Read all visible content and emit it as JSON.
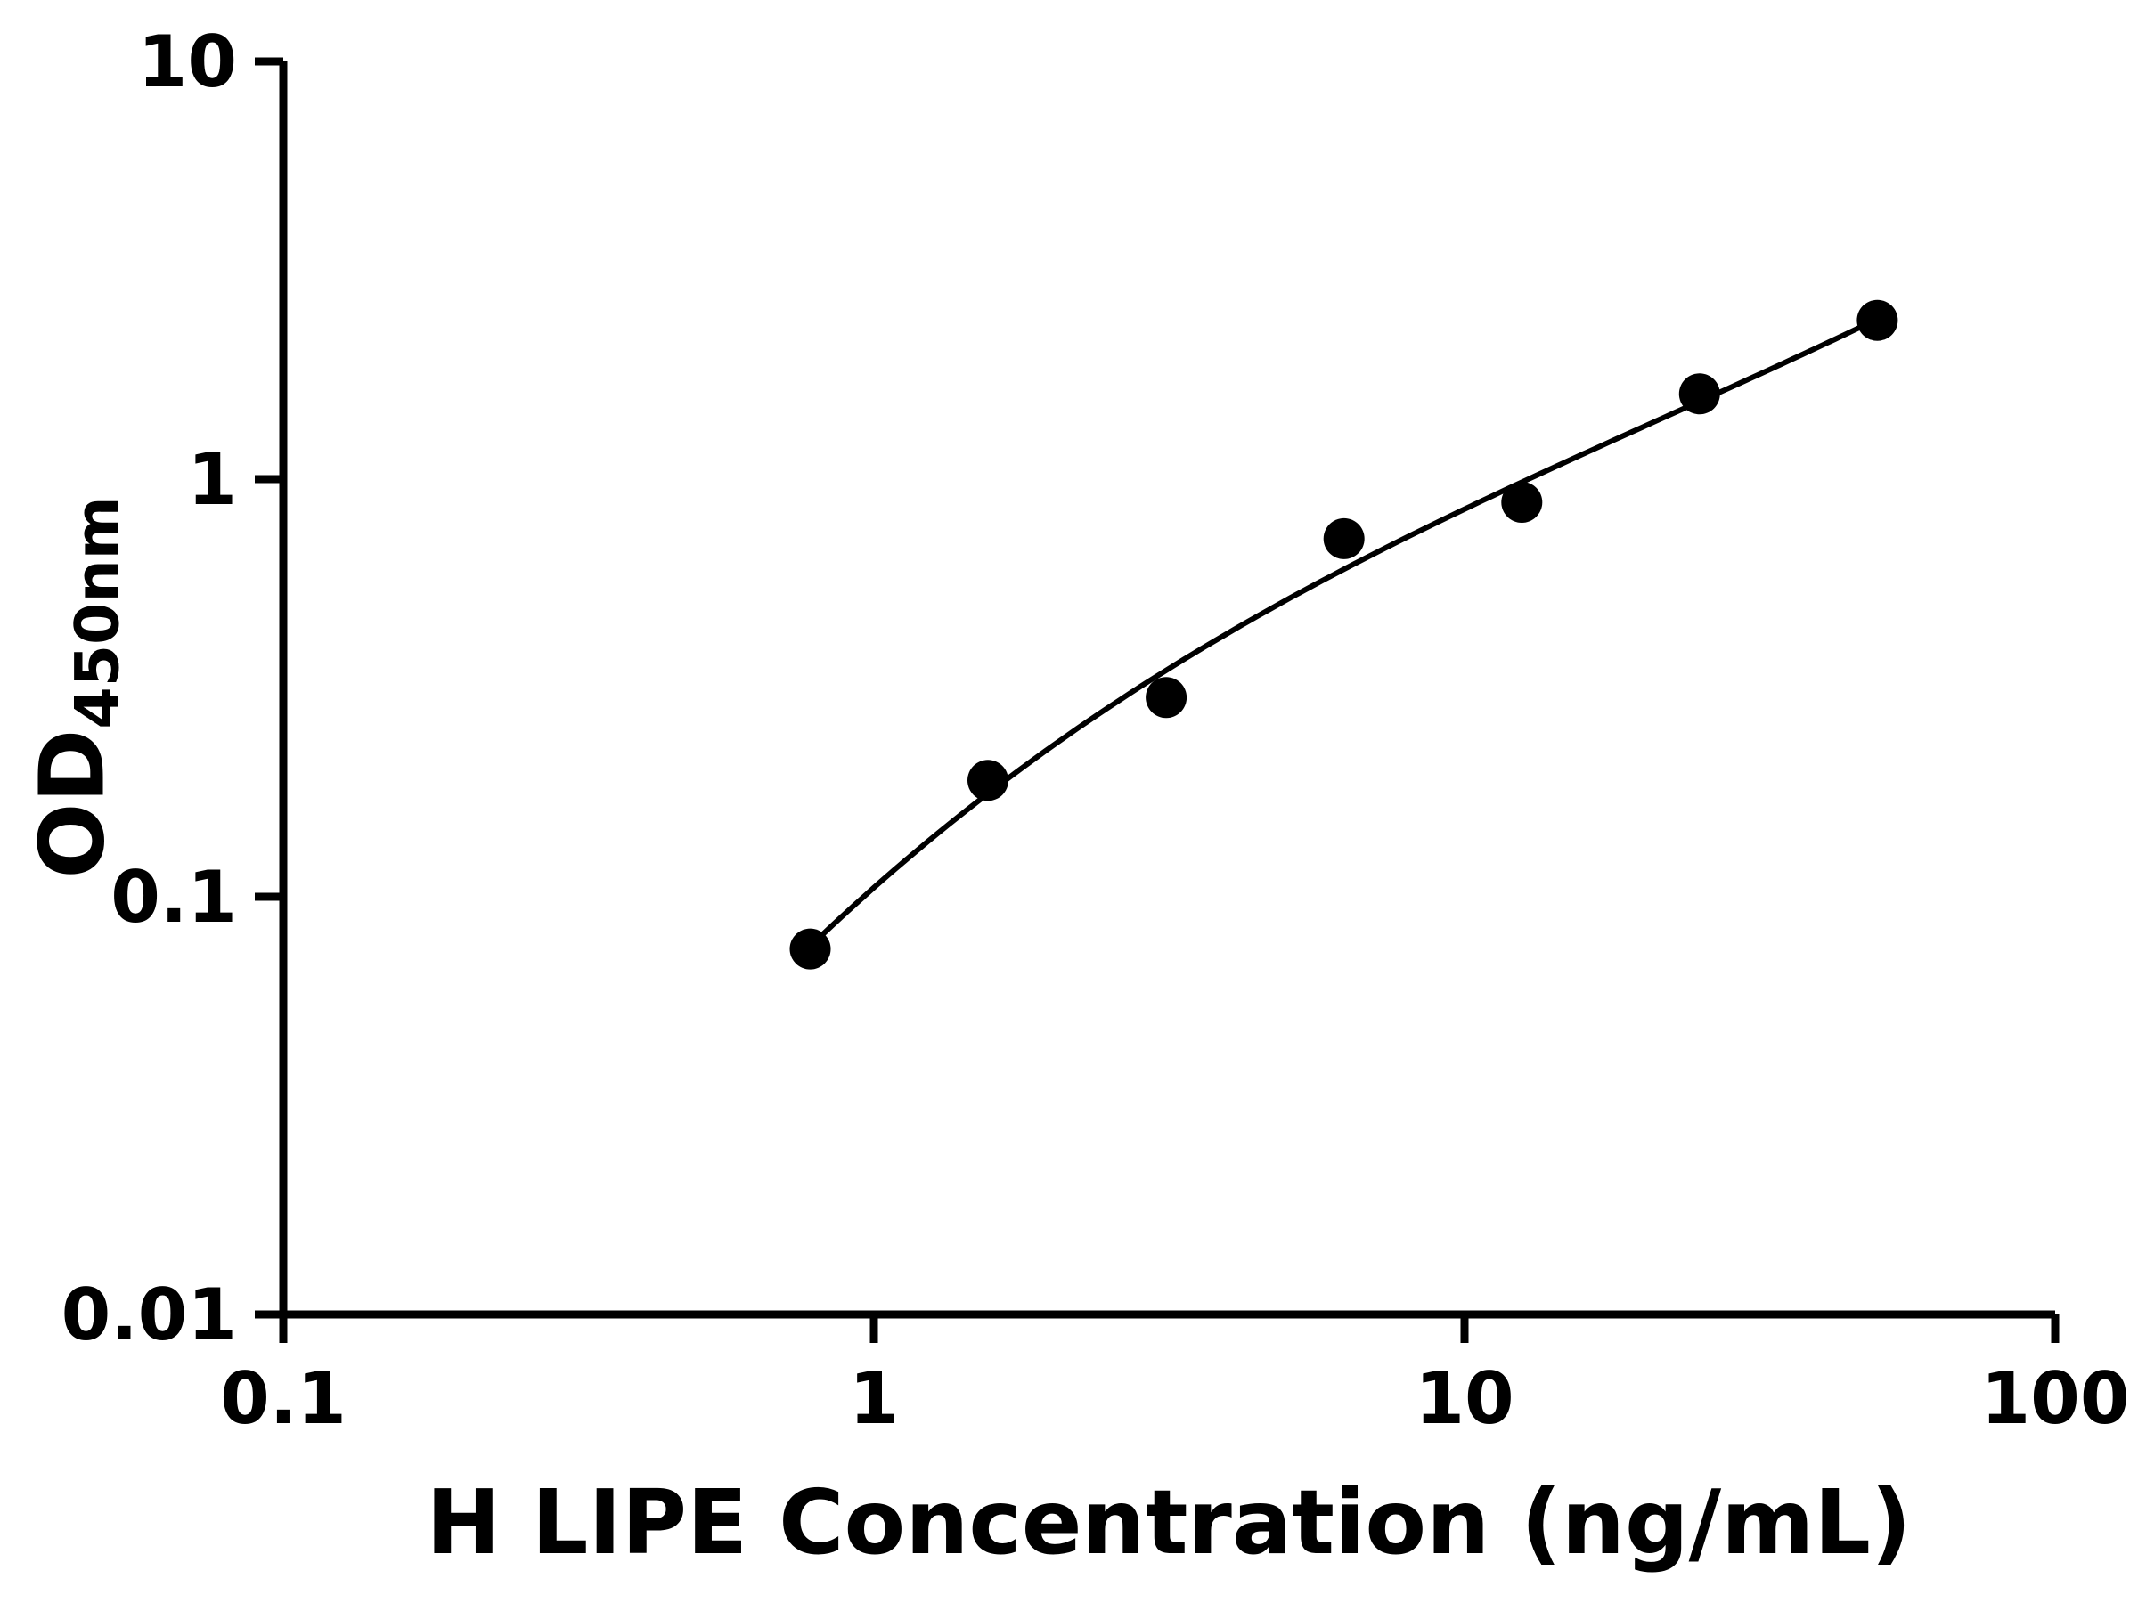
{
  "figure": {
    "background_color": "#ffffff"
  },
  "chart_data": {
    "type": "scatter",
    "title": "",
    "xlabel": "H LIPE Concentration (ng/mL)",
    "ylabel": "OD450nm",
    "ylabel_main": "OD",
    "ylabel_sub": "450nm",
    "x_scale": "log10",
    "y_scale": "log10",
    "xlim": [
      0.1,
      100
    ],
    "ylim": [
      0.01,
      10
    ],
    "x_ticks": [
      0.1,
      1,
      10,
      100
    ],
    "x_tick_labels": [
      "0.1",
      "1",
      "10",
      "100"
    ],
    "y_ticks": [
      0.01,
      0.1,
      1,
      10
    ],
    "y_tick_labels": [
      "0.01",
      "0.1",
      "1",
      "10"
    ],
    "grid": false,
    "legend": false,
    "axis_color": "#000000",
    "series": [
      {
        "marker": "filled-circle",
        "marker_color": "#000000",
        "line_style": "smooth-fit-curve",
        "line_color": "#000000",
        "x": [
          0.78,
          1.56,
          3.125,
          6.25,
          12.5,
          25,
          50
        ],
        "y": [
          0.075,
          0.19,
          0.3,
          0.72,
          0.88,
          1.6,
          2.4
        ]
      }
    ]
  }
}
